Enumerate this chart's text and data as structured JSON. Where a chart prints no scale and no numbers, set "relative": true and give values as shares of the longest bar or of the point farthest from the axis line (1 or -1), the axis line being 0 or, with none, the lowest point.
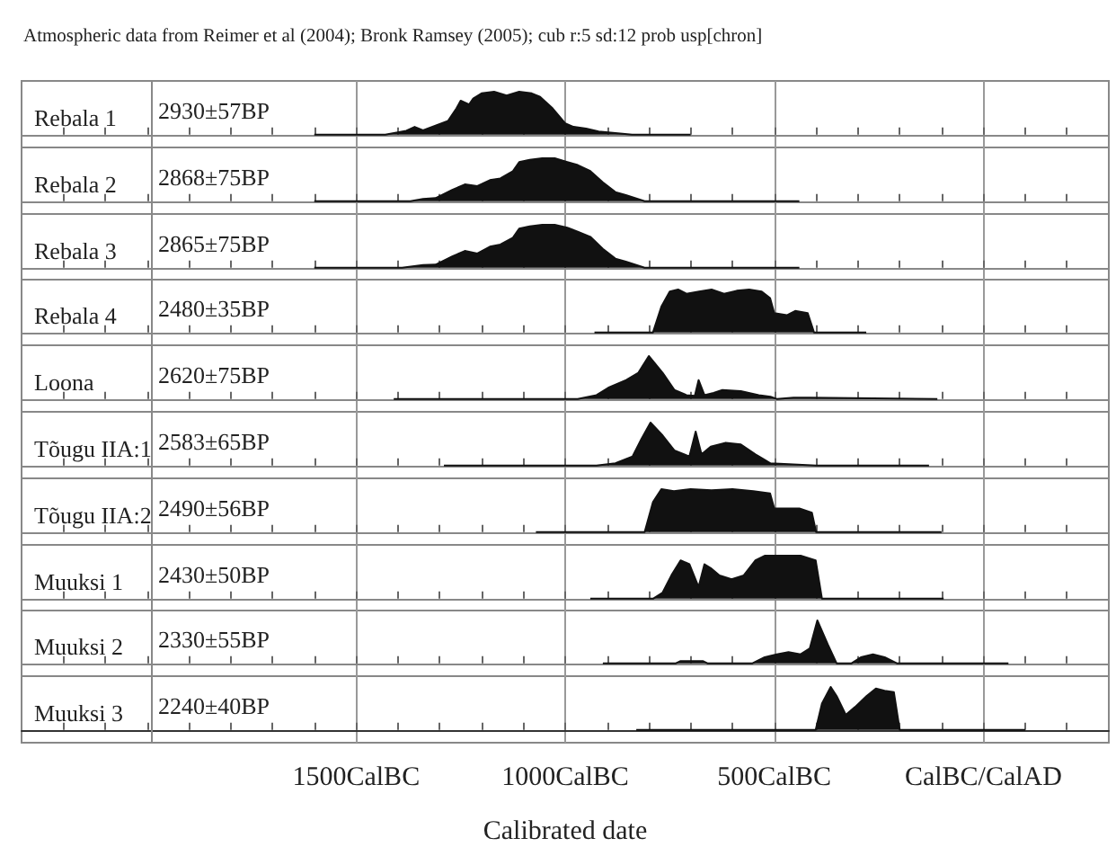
{
  "chart_data": [
    {
      "type": "area",
      "subtitle": "Atmospheric data from Reimer et al (2004); Bronk Ramsey (2005); cub r:5 sd:12 prob usp[chron]",
      "title": "Rebala 1",
      "annotations": [
        "2930±57BP"
      ],
      "relative": true,
      "color": "#111111",
      "grid": "x",
      "tick_labels": false,
      "xlim": [
        -2300,
        300
      ],
      "xticks": [
        -2200,
        -2100,
        -2000,
        -1900,
        -1800,
        -1700,
        -1600,
        -1500,
        -1400,
        -1300,
        -1200,
        -1100,
        -1000,
        -900,
        -800,
        -700,
        -600,
        -500,
        -400,
        -300,
        -200,
        -100,
        0,
        100,
        200
      ],
      "x": [
        -1600,
        -1430,
        -1380,
        -1360,
        -1340,
        -1310,
        -1280,
        -1260,
        -1250,
        -1230,
        -1220,
        -1200,
        -1170,
        -1140,
        -1110,
        -1080,
        -1060,
        -1030,
        -1000,
        -980,
        -950,
        -920,
        -840,
        -700
      ],
      "values": [
        0,
        0,
        0.09,
        0.18,
        0.1,
        0.21,
        0.32,
        0.61,
        0.79,
        0.7,
        0.84,
        0.96,
        1,
        0.91,
        1,
        0.96,
        0.88,
        0.61,
        0.26,
        0.18,
        0.14,
        0.07,
        0,
        0
      ]
    },
    {
      "type": "area",
      "title": "Rebala 2",
      "annotations": [
        "2868±75BP"
      ],
      "relative": true,
      "color": "#111111",
      "grid": "x",
      "tick_labels": false,
      "xlim": [
        -2300,
        300
      ],
      "xticks": [
        -2200,
        -2100,
        -2000,
        -1900,
        -1800,
        -1700,
        -1600,
        -1500,
        -1400,
        -1300,
        -1200,
        -1100,
        -1000,
        -900,
        -800,
        -700,
        -600,
        -500,
        -400,
        -300,
        -200,
        -100,
        0,
        100,
        200
      ],
      "x": [
        -1600,
        -1370,
        -1340,
        -1310,
        -1270,
        -1240,
        -1210,
        -1180,
        -1155,
        -1125,
        -1110,
        -1085,
        -1055,
        -1025,
        -995,
        -970,
        -940,
        -910,
        -880,
        -855,
        -810,
        -440
      ],
      "values": [
        0,
        0,
        0.05,
        0.07,
        0.26,
        0.39,
        0.35,
        0.49,
        0.53,
        0.7,
        0.91,
        0.96,
        1,
        1,
        0.91,
        0.84,
        0.7,
        0.44,
        0.21,
        0.14,
        0,
        0
      ]
    },
    {
      "type": "area",
      "title": "Rebala 3",
      "annotations": [
        "2865±75BP"
      ],
      "relative": true,
      "color": "#111111",
      "grid": "x",
      "tick_labels": false,
      "xlim": [
        -2300,
        300
      ],
      "xticks": [
        -2200,
        -2100,
        -2000,
        -1900,
        -1800,
        -1700,
        -1600,
        -1500,
        -1400,
        -1300,
        -1200,
        -1100,
        -1000,
        -900,
        -800,
        -700,
        -600,
        -500,
        -400,
        -300,
        -200,
        -100,
        0,
        100,
        200
      ],
      "x": [
        -1600,
        -1390,
        -1340,
        -1310,
        -1270,
        -1240,
        -1210,
        -1180,
        -1155,
        -1125,
        -1110,
        -1085,
        -1055,
        -1025,
        -995,
        -970,
        -940,
        -910,
        -880,
        -855,
        -810,
        -440
      ],
      "values": [
        0,
        0,
        0.06,
        0.07,
        0.26,
        0.39,
        0.33,
        0.49,
        0.54,
        0.7,
        0.91,
        0.96,
        1,
        1,
        0.93,
        0.84,
        0.72,
        0.44,
        0.21,
        0.14,
        0,
        0
      ]
    },
    {
      "type": "area",
      "title": "Rebala 4",
      "annotations": [
        "2480±35BP"
      ],
      "relative": true,
      "color": "#111111",
      "grid": "x",
      "tick_labels": false,
      "xlim": [
        -2300,
        300
      ],
      "xticks": [
        -2200,
        -2100,
        -2000,
        -1900,
        -1800,
        -1700,
        -1600,
        -1500,
        -1400,
        -1300,
        -1200,
        -1100,
        -1000,
        -900,
        -800,
        -700,
        -600,
        -500,
        -400,
        -300,
        -200,
        -100,
        0,
        100,
        200
      ],
      "x": [
        -930,
        -790,
        -770,
        -750,
        -730,
        -710,
        -680,
        -650,
        -620,
        -590,
        -560,
        -530,
        -510,
        -500,
        -470,
        -450,
        -420,
        -405,
        -280
      ],
      "values": [
        0,
        0,
        0.6,
        0.95,
        1,
        0.9,
        0.95,
        1,
        0.9,
        0.97,
        1,
        0.95,
        0.8,
        0.45,
        0.4,
        0.5,
        0.45,
        0,
        0
      ]
    },
    {
      "type": "area",
      "title": "Loona",
      "annotations": [
        "2620±75BP"
      ],
      "relative": true,
      "color": "#111111",
      "grid": "x",
      "tick_labels": false,
      "xlim": [
        -2300,
        300
      ],
      "xticks": [
        -2200,
        -2100,
        -2000,
        -1900,
        -1800,
        -1700,
        -1600,
        -1500,
        -1400,
        -1300,
        -1200,
        -1100,
        -1000,
        -900,
        -800,
        -700,
        -600,
        -500,
        -400,
        -300,
        -200,
        -100,
        0,
        100,
        200
      ],
      "x": [
        -1410,
        -970,
        -925,
        -897,
        -854,
        -825,
        -800,
        -767,
        -739,
        -710,
        -690,
        -681,
        -667,
        -645,
        -624,
        -580,
        -537,
        -509,
        -494,
        -454,
        -415,
        -110
      ],
      "values": [
        0,
        0,
        0.09,
        0.26,
        0.44,
        0.61,
        1,
        0.61,
        0.21,
        0.09,
        0.07,
        0.44,
        0.09,
        0.14,
        0.21,
        0.18,
        0.09,
        0.05,
        0,
        0.03,
        0.03,
        0
      ]
    },
    {
      "type": "area",
      "title": "Tõugu IIA:1",
      "annotations": [
        "2583±65BP"
      ],
      "relative": true,
      "color": "#111111",
      "grid": "x",
      "tick_labels": false,
      "xlim": [
        -2300,
        300
      ],
      "xticks": [
        -2200,
        -2100,
        -2000,
        -1900,
        -1800,
        -1700,
        -1600,
        -1500,
        -1400,
        -1300,
        -1200,
        -1100,
        -1000,
        -900,
        -800,
        -700,
        -600,
        -500,
        -400,
        -300,
        -200,
        -100,
        0,
        100,
        200
      ],
      "x": [
        -1290,
        -925,
        -880,
        -839,
        -818,
        -796,
        -767,
        -739,
        -703,
        -688,
        -674,
        -652,
        -616,
        -580,
        -545,
        -509,
        -400,
        -130
      ],
      "values": [
        0,
        0,
        0.05,
        0.21,
        0.61,
        1,
        0.7,
        0.35,
        0.21,
        0.79,
        0.26,
        0.44,
        0.53,
        0.49,
        0.26,
        0.05,
        0,
        0
      ]
    },
    {
      "type": "area",
      "title": "Tõugu IIA:2",
      "annotations": [
        "2490±56BP"
      ],
      "relative": true,
      "color": "#111111",
      "grid": "x",
      "tick_labels": false,
      "xlim": [
        -2300,
        300
      ],
      "xticks": [
        -2200,
        -2100,
        -2000,
        -1900,
        -1800,
        -1700,
        -1600,
        -1500,
        -1400,
        -1300,
        -1200,
        -1100,
        -1000,
        -900,
        -800,
        -700,
        -600,
        -500,
        -400,
        -300,
        -200,
        -100,
        0,
        100,
        200
      ],
      "x": [
        -1070,
        -810,
        -790,
        -770,
        -740,
        -700,
        -650,
        -600,
        -550,
        -510,
        -500,
        -440,
        -410,
        -400,
        -100
      ],
      "values": [
        0,
        0,
        0.7,
        1,
        0.95,
        1,
        0.97,
        1,
        0.95,
        0.9,
        0.55,
        0.55,
        0.45,
        0,
        0
      ]
    },
    {
      "type": "area",
      "title": "Muuksi 1",
      "annotations": [
        "2430±50BP"
      ],
      "relative": true,
      "color": "#111111",
      "grid": "x",
      "tick_labels": false,
      "xlim": [
        -2300,
        300
      ],
      "xticks": [
        -2200,
        -2100,
        -2000,
        -1900,
        -1800,
        -1700,
        -1600,
        -1500,
        -1400,
        -1300,
        -1200,
        -1100,
        -1000,
        -900,
        -800,
        -700,
        -600,
        -500,
        -400,
        -300,
        -200,
        -100,
        0,
        100,
        200
      ],
      "x": [
        -940,
        -789,
        -767,
        -746,
        -724,
        -703,
        -681,
        -667,
        -652,
        -631,
        -602,
        -573,
        -545,
        -522,
        -437,
        -401,
        -386,
        -95
      ],
      "values": [
        0,
        0,
        0.14,
        0.54,
        0.89,
        0.8,
        0.27,
        0.8,
        0.71,
        0.54,
        0.45,
        0.54,
        0.89,
        1,
        1,
        0.89,
        0,
        0
      ]
    },
    {
      "type": "area",
      "title": "Muuksi 2",
      "annotations": [
        "2330±55BP"
      ],
      "relative": true,
      "color": "#111111",
      "grid": "x",
      "tick_labels": false,
      "xlim": [
        -2300,
        300
      ],
      "xticks": [
        -2200,
        -2100,
        -2000,
        -1900,
        -1800,
        -1700,
        -1600,
        -1500,
        -1400,
        -1300,
        -1200,
        -1100,
        -1000,
        -900,
        -800,
        -700,
        -600,
        -500,
        -400,
        -300,
        -200,
        -100,
        0,
        100,
        200
      ],
      "x": [
        -910,
        -735,
        -725,
        -670,
        -660,
        -552,
        -523,
        -494,
        -466,
        -437,
        -415,
        -397,
        -372,
        -351,
        -315,
        -293,
        -264,
        -236,
        -207,
        60
      ],
      "values": [
        0,
        0,
        0.05,
        0.05,
        0,
        0,
        0.14,
        0.21,
        0.26,
        0.21,
        0.35,
        1,
        0.44,
        0,
        0,
        0.14,
        0.21,
        0.14,
        0,
        0
      ]
    },
    {
      "type": "area",
      "title": "Muuksi 3",
      "annotations": [
        "2240±40BP"
      ],
      "xlabel": "Calibrated date",
      "relative": true,
      "color": "#111111",
      "grid": "x",
      "xlim": [
        -2300,
        300
      ],
      "xticks": [
        {
          "value": -2200,
          "label": null
        },
        {
          "value": -2100,
          "label": null
        },
        {
          "value": -2000,
          "label": null
        },
        {
          "value": -1900,
          "label": null
        },
        {
          "value": -1800,
          "label": null
        },
        {
          "value": -1700,
          "label": null
        },
        {
          "value": -1600,
          "label": null
        },
        {
          "value": -1500,
          "label": "1500CalBC"
        },
        {
          "value": -1400,
          "label": null
        },
        {
          "value": -1300,
          "label": null
        },
        {
          "value": -1200,
          "label": null
        },
        {
          "value": -1100,
          "label": null
        },
        {
          "value": -1000,
          "label": "1000CalBC"
        },
        {
          "value": -900,
          "label": null
        },
        {
          "value": -800,
          "label": null
        },
        {
          "value": -700,
          "label": null
        },
        {
          "value": -600,
          "label": null
        },
        {
          "value": -500,
          "label": "500CalBC"
        },
        {
          "value": -400,
          "label": null
        },
        {
          "value": -300,
          "label": null
        },
        {
          "value": -200,
          "label": null
        },
        {
          "value": -100,
          "label": null
        },
        {
          "value": 0,
          "label": "CalBC/CalAD"
        },
        {
          "value": 100,
          "label": null
        },
        {
          "value": 200,
          "label": null
        }
      ],
      "x": [
        -830,
        -401,
        -386,
        -365,
        -351,
        -329,
        -307,
        -279,
        -257,
        -236,
        -214,
        -200,
        100
      ],
      "values": [
        0,
        0,
        0.61,
        1,
        0.79,
        0.35,
        0.53,
        0.79,
        0.96,
        0.91,
        0.88,
        0,
        0
      ]
    }
  ]
}
